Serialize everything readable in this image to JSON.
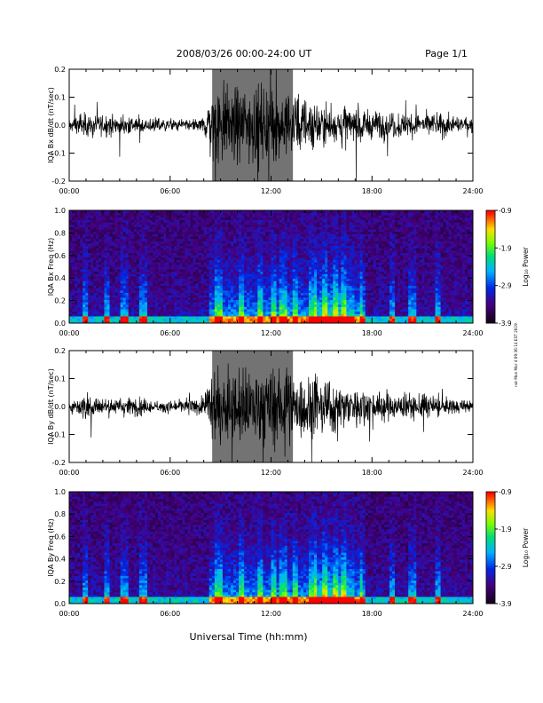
{
  "header": {
    "title": "2008/03/26  00:00-24:00 UT",
    "page": "Page 1/1"
  },
  "footer": {
    "xlabel": "Universal Time (hh:mm)"
  },
  "side_note": "nat Mon Mar 4 09:36:14 EST 2019",
  "colorbar": {
    "label": "Log₁₀ Power",
    "ticks": [
      "-0.9",
      "-1.9",
      "-2.9",
      "-3.9"
    ],
    "range": [
      -3.9,
      -0.9
    ]
  },
  "chart_data": [
    {
      "type": "line",
      "ylabel": "IQA Bx dB/dt (nT/sec)",
      "x_ticks": [
        "00:00",
        "06:00",
        "12:00",
        "18:00",
        "24:00"
      ],
      "y_ticks": [
        "0.2",
        "0.1",
        "0.0",
        "-0.1",
        "-0.2"
      ],
      "xlim": [
        "00:00",
        "24:00"
      ],
      "ylim": [
        -0.2,
        0.2
      ],
      "envelope": {
        "hours": [
          0,
          1,
          2,
          3,
          4,
          5,
          6,
          7,
          8,
          8.5,
          9,
          10,
          11,
          12,
          13,
          14,
          15,
          16,
          17,
          18,
          19,
          20,
          21,
          22,
          23,
          24
        ],
        "amplitude": [
          0.03,
          0.07,
          0.05,
          0.06,
          0.05,
          0.04,
          0.03,
          0.03,
          0.04,
          0.2,
          0.2,
          0.2,
          0.2,
          0.2,
          0.18,
          0.15,
          0.12,
          0.1,
          0.1,
          0.08,
          0.07,
          0.07,
          0.07,
          0.06,
          0.05,
          0.04
        ]
      }
    },
    {
      "type": "heatmap",
      "ylabel": "IQA Bx Freq (Hz)",
      "x_ticks": [
        "00:00",
        "06:00",
        "12:00",
        "18:00",
        "24:00"
      ],
      "y_ticks": [
        "1.0",
        "0.8",
        "0.6",
        "0.4",
        "0.2",
        "0.0"
      ],
      "xlim": [
        "00:00",
        "24:00"
      ],
      "ylim": [
        0.0,
        1.0
      ]
    },
    {
      "type": "line",
      "ylabel": "IQA By dB/dt (nT/sec)",
      "x_ticks": [
        "00:00",
        "06:00",
        "12:00",
        "18:00",
        "24:00"
      ],
      "y_ticks": [
        "0.2",
        "0.1",
        "0.0",
        "-0.1",
        "-0.2"
      ],
      "xlim": [
        "00:00",
        "24:00"
      ],
      "ylim": [
        -0.2,
        0.2
      ],
      "envelope": {
        "hours": [
          0,
          1,
          2,
          3,
          4,
          5,
          6,
          7,
          8,
          8.5,
          9,
          10,
          11,
          12,
          13,
          14,
          15,
          16,
          17,
          18,
          19,
          20,
          21,
          22,
          23,
          24
        ],
        "amplitude": [
          0.02,
          0.08,
          0.04,
          0.05,
          0.05,
          0.03,
          0.03,
          0.04,
          0.05,
          0.2,
          0.2,
          0.2,
          0.2,
          0.2,
          0.2,
          0.18,
          0.15,
          0.12,
          0.1,
          0.08,
          0.07,
          0.06,
          0.07,
          0.05,
          0.04,
          0.03
        ]
      }
    },
    {
      "type": "heatmap",
      "ylabel": "IQA By Freq (Hz)",
      "x_ticks": [
        "00:00",
        "06:00",
        "12:00",
        "18:00",
        "24:00"
      ],
      "y_ticks": [
        "1.0",
        "0.8",
        "0.6",
        "0.4",
        "0.2",
        "0.0"
      ],
      "xlim": [
        "00:00",
        "24:00"
      ],
      "ylim": [
        0.0,
        1.0
      ]
    }
  ]
}
